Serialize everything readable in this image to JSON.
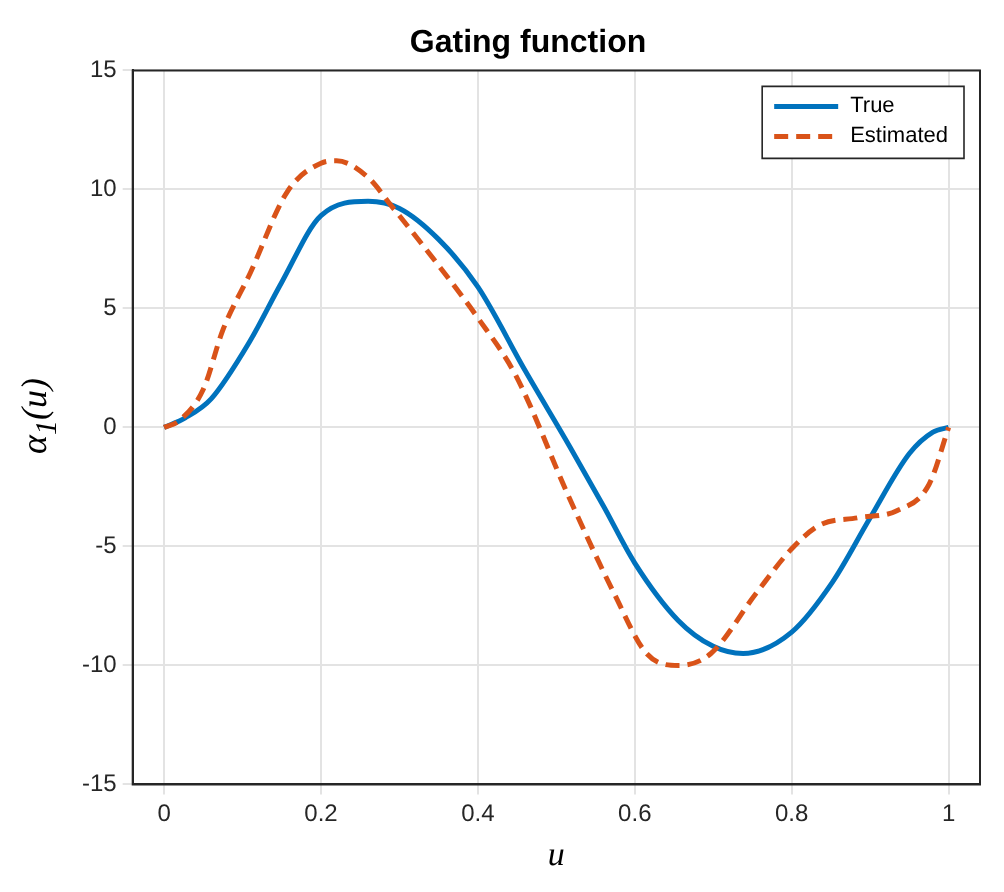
{
  "chart_data": {
    "type": "line",
    "title": "Gating function",
    "xlabel": "u",
    "ylabel": "α$_{1}$(u)",
    "xlim": [
      -0.04,
      1.04
    ],
    "ylim": [
      -15,
      15
    ],
    "xticks": [
      0,
      0.2,
      0.4,
      0.6,
      0.8,
      1
    ],
    "yticks": [
      -15,
      -10,
      -5,
      0,
      5,
      10,
      15
    ],
    "grid": true,
    "legend": "top right",
    "marker": "none",
    "series": [
      {
        "name": "True",
        "color": "#0072bd",
        "line_style": "solid",
        "x": [
          0,
          0.027,
          0.06,
          0.109,
          0.15,
          0.2,
          0.26,
          0.3,
          0.35,
          0.4,
          0.46,
          0.517,
          0.56,
          0.6,
          0.655,
          0.7,
          0.738,
          0.8,
          0.852,
          0.9,
          0.95,
          0.98,
          1
        ],
        "values": [
          0,
          0.4,
          1.2,
          3.6,
          6.1,
          8.9,
          9.5,
          9.2,
          7.9,
          5.9,
          2.4,
          -0.8,
          -3.3,
          -5.7,
          -8.1,
          -9.2,
          -9.5,
          -8.6,
          -6.5,
          -3.8,
          -1.1,
          -0.2,
          0
        ]
      },
      {
        "name": "Estimated",
        "color": "#d95319",
        "line_style": "dashed",
        "x": [
          0,
          0.02,
          0.05,
          0.075,
          0.11,
          0.157,
          0.2,
          0.22,
          0.26,
          0.29,
          0.35,
          0.4,
          0.448,
          0.517,
          0.574,
          0.615,
          0.656,
          0.697,
          0.754,
          0.8,
          0.836,
          0.884,
          0.934,
          0.975,
          1
        ],
        "values": [
          0,
          0.3,
          1.6,
          4.1,
          6.5,
          9.9,
          11.1,
          11.2,
          10.5,
          9.3,
          6.8,
          4.6,
          2.2,
          -3.0,
          -7.0,
          -9.5,
          -10,
          -9.5,
          -7.0,
          -5.1,
          -4.1,
          -3.8,
          -3.5,
          -2.4,
          0
        ]
      }
    ]
  }
}
